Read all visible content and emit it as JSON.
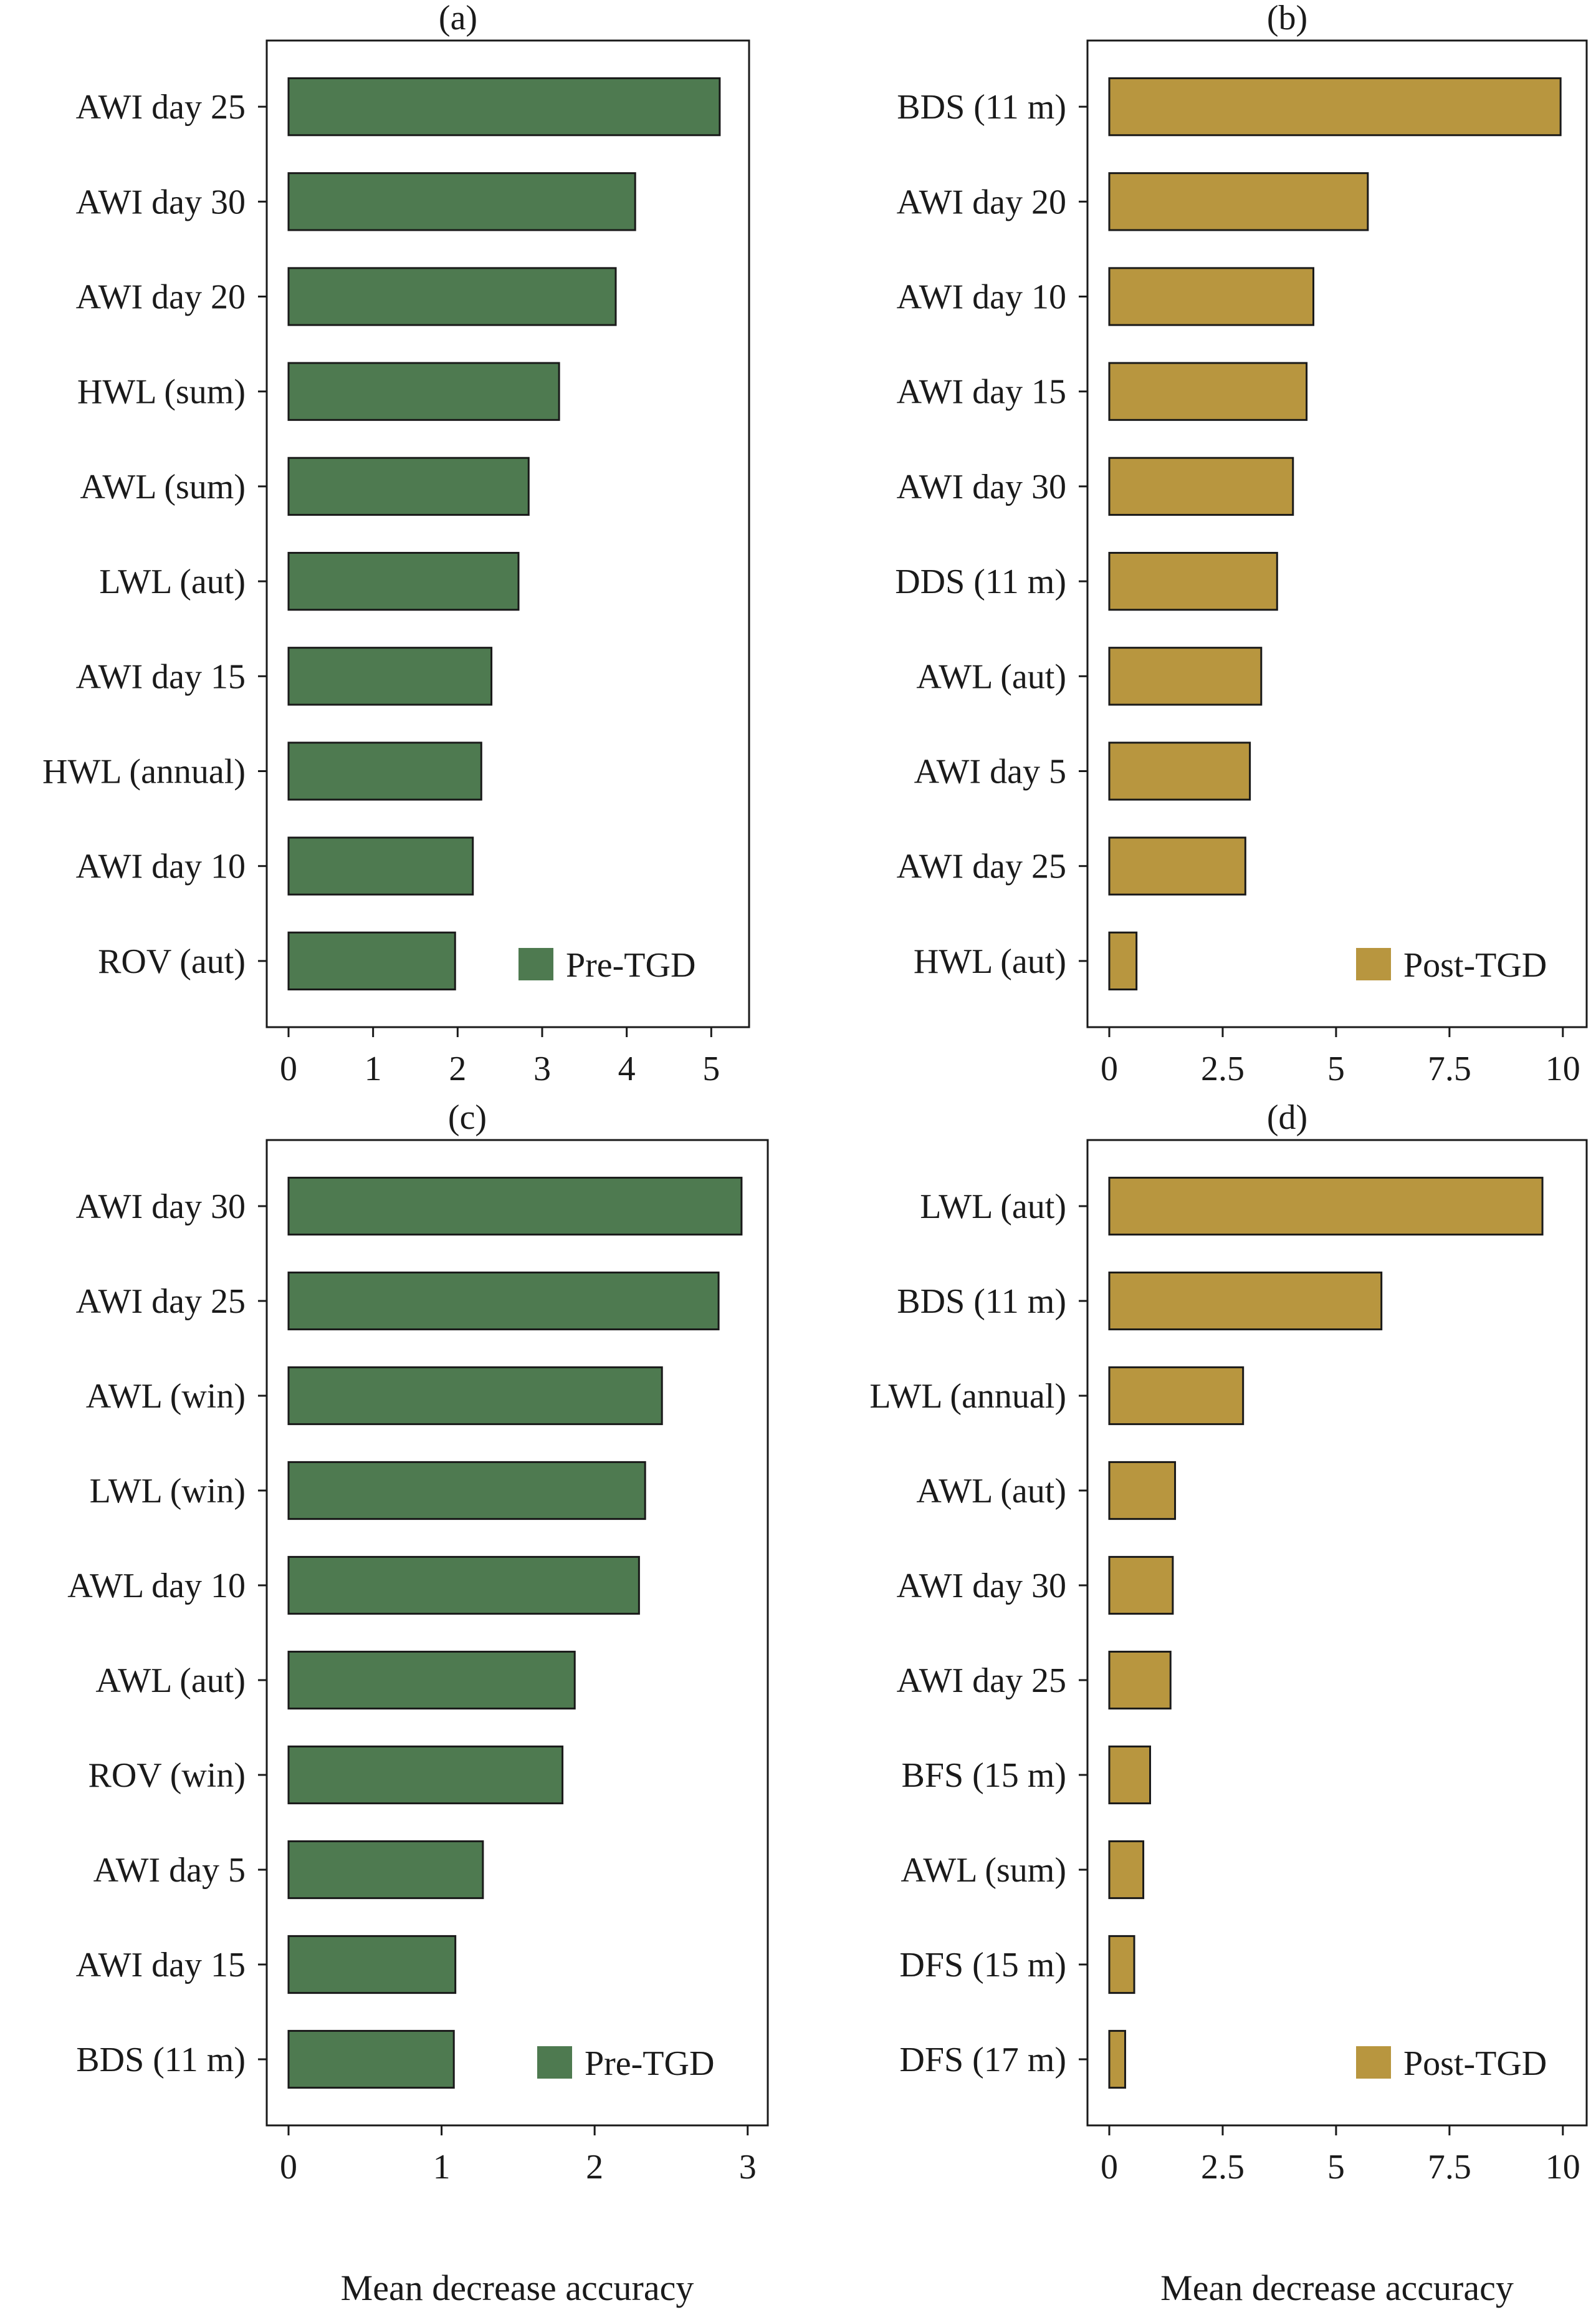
{
  "chart_data": [
    {
      "type": "bar",
      "orientation": "horizontal",
      "panel_label": "(a)",
      "categories": [
        "AWI day 25",
        "AWI day 30",
        "AWI day 20",
        "HWL (sum)",
        "AWL (sum)",
        "LWL (aut)",
        "AWI day 15",
        "HWL (annual)",
        "AWI day 10",
        "ROV (aut)"
      ],
      "values": [
        5.1,
        4.1,
        3.87,
        3.2,
        2.84,
        2.72,
        2.4,
        2.28,
        2.18,
        1.97
      ],
      "xlim": [
        0,
        5.3
      ],
      "xticks": [
        "0",
        "1",
        "2",
        "3",
        "4",
        "5"
      ],
      "xtick_values": [
        0,
        1,
        2,
        3,
        4,
        5
      ],
      "legend": "Pre-TGD",
      "legend_position": "bottom-right",
      "color": "#4e7a50",
      "xlabel": ""
    },
    {
      "type": "bar",
      "orientation": "horizontal",
      "panel_label": "(b)",
      "categories": [
        "BDS (11 m)",
        "AWI day 20",
        "AWI day 10",
        "AWI day 15",
        "AWI day 30",
        "DDS (11 m)",
        "AWL (aut)",
        "AWI day 5",
        "AWI day 25",
        "HWL (aut)"
      ],
      "values": [
        9.95,
        5.7,
        4.5,
        4.35,
        4.05,
        3.7,
        3.35,
        3.1,
        3.0,
        0.6
      ],
      "xlim": [
        0,
        10.25
      ],
      "xticks": [
        "0",
        "2.5",
        "5",
        "7.5",
        "10"
      ],
      "xtick_values": [
        0,
        2.5,
        5,
        7.5,
        10
      ],
      "legend": "Post-TGD",
      "legend_position": "bottom-right",
      "color": "#b8963f",
      "xlabel": ""
    },
    {
      "type": "bar",
      "orientation": "horizontal",
      "panel_label": "(c)",
      "categories": [
        "AWI day 30",
        "AWI day 25",
        "AWL (win)",
        "LWL (win)",
        "AWL day 10",
        "AWL (aut)",
        "ROV (win)",
        "AWI day 5",
        "AWI day 15",
        "BDS (11 m)"
      ],
      "values": [
        2.96,
        2.81,
        2.44,
        2.33,
        2.29,
        1.87,
        1.79,
        1.27,
        1.09,
        1.08
      ],
      "xlim": [
        0,
        3.05
      ],
      "xticks": [
        "0",
        "1",
        "2",
        "3"
      ],
      "xtick_values": [
        0,
        1,
        2,
        3
      ],
      "legend": "Pre-TGD",
      "legend_position": "bottom-right",
      "color": "#4e7a50",
      "xlabel": "Mean decrease accuracy"
    },
    {
      "type": "bar",
      "orientation": "horizontal",
      "panel_label": "(d)",
      "categories": [
        "LWL (aut)",
        "BDS (11 m)",
        "LWL (annual)",
        "AWL (aut)",
        "AWI day 30",
        "AWI day 25",
        "BFS (15 m)",
        "AWL (sum)",
        "DFS (15 m)",
        "DFS (17 m)"
      ],
      "values": [
        9.55,
        6.0,
        2.95,
        1.45,
        1.4,
        1.35,
        0.9,
        0.75,
        0.55,
        0.35
      ],
      "xlim": [
        0,
        10.25
      ],
      "xticks": [
        "0",
        "2.5",
        "5",
        "7.5",
        "10"
      ],
      "xtick_values": [
        0,
        2.5,
        5,
        7.5,
        10
      ],
      "legend": "Post-TGD",
      "legend_position": "bottom-right",
      "color": "#b8963f",
      "xlabel": "Mean decrease accuracy"
    }
  ]
}
